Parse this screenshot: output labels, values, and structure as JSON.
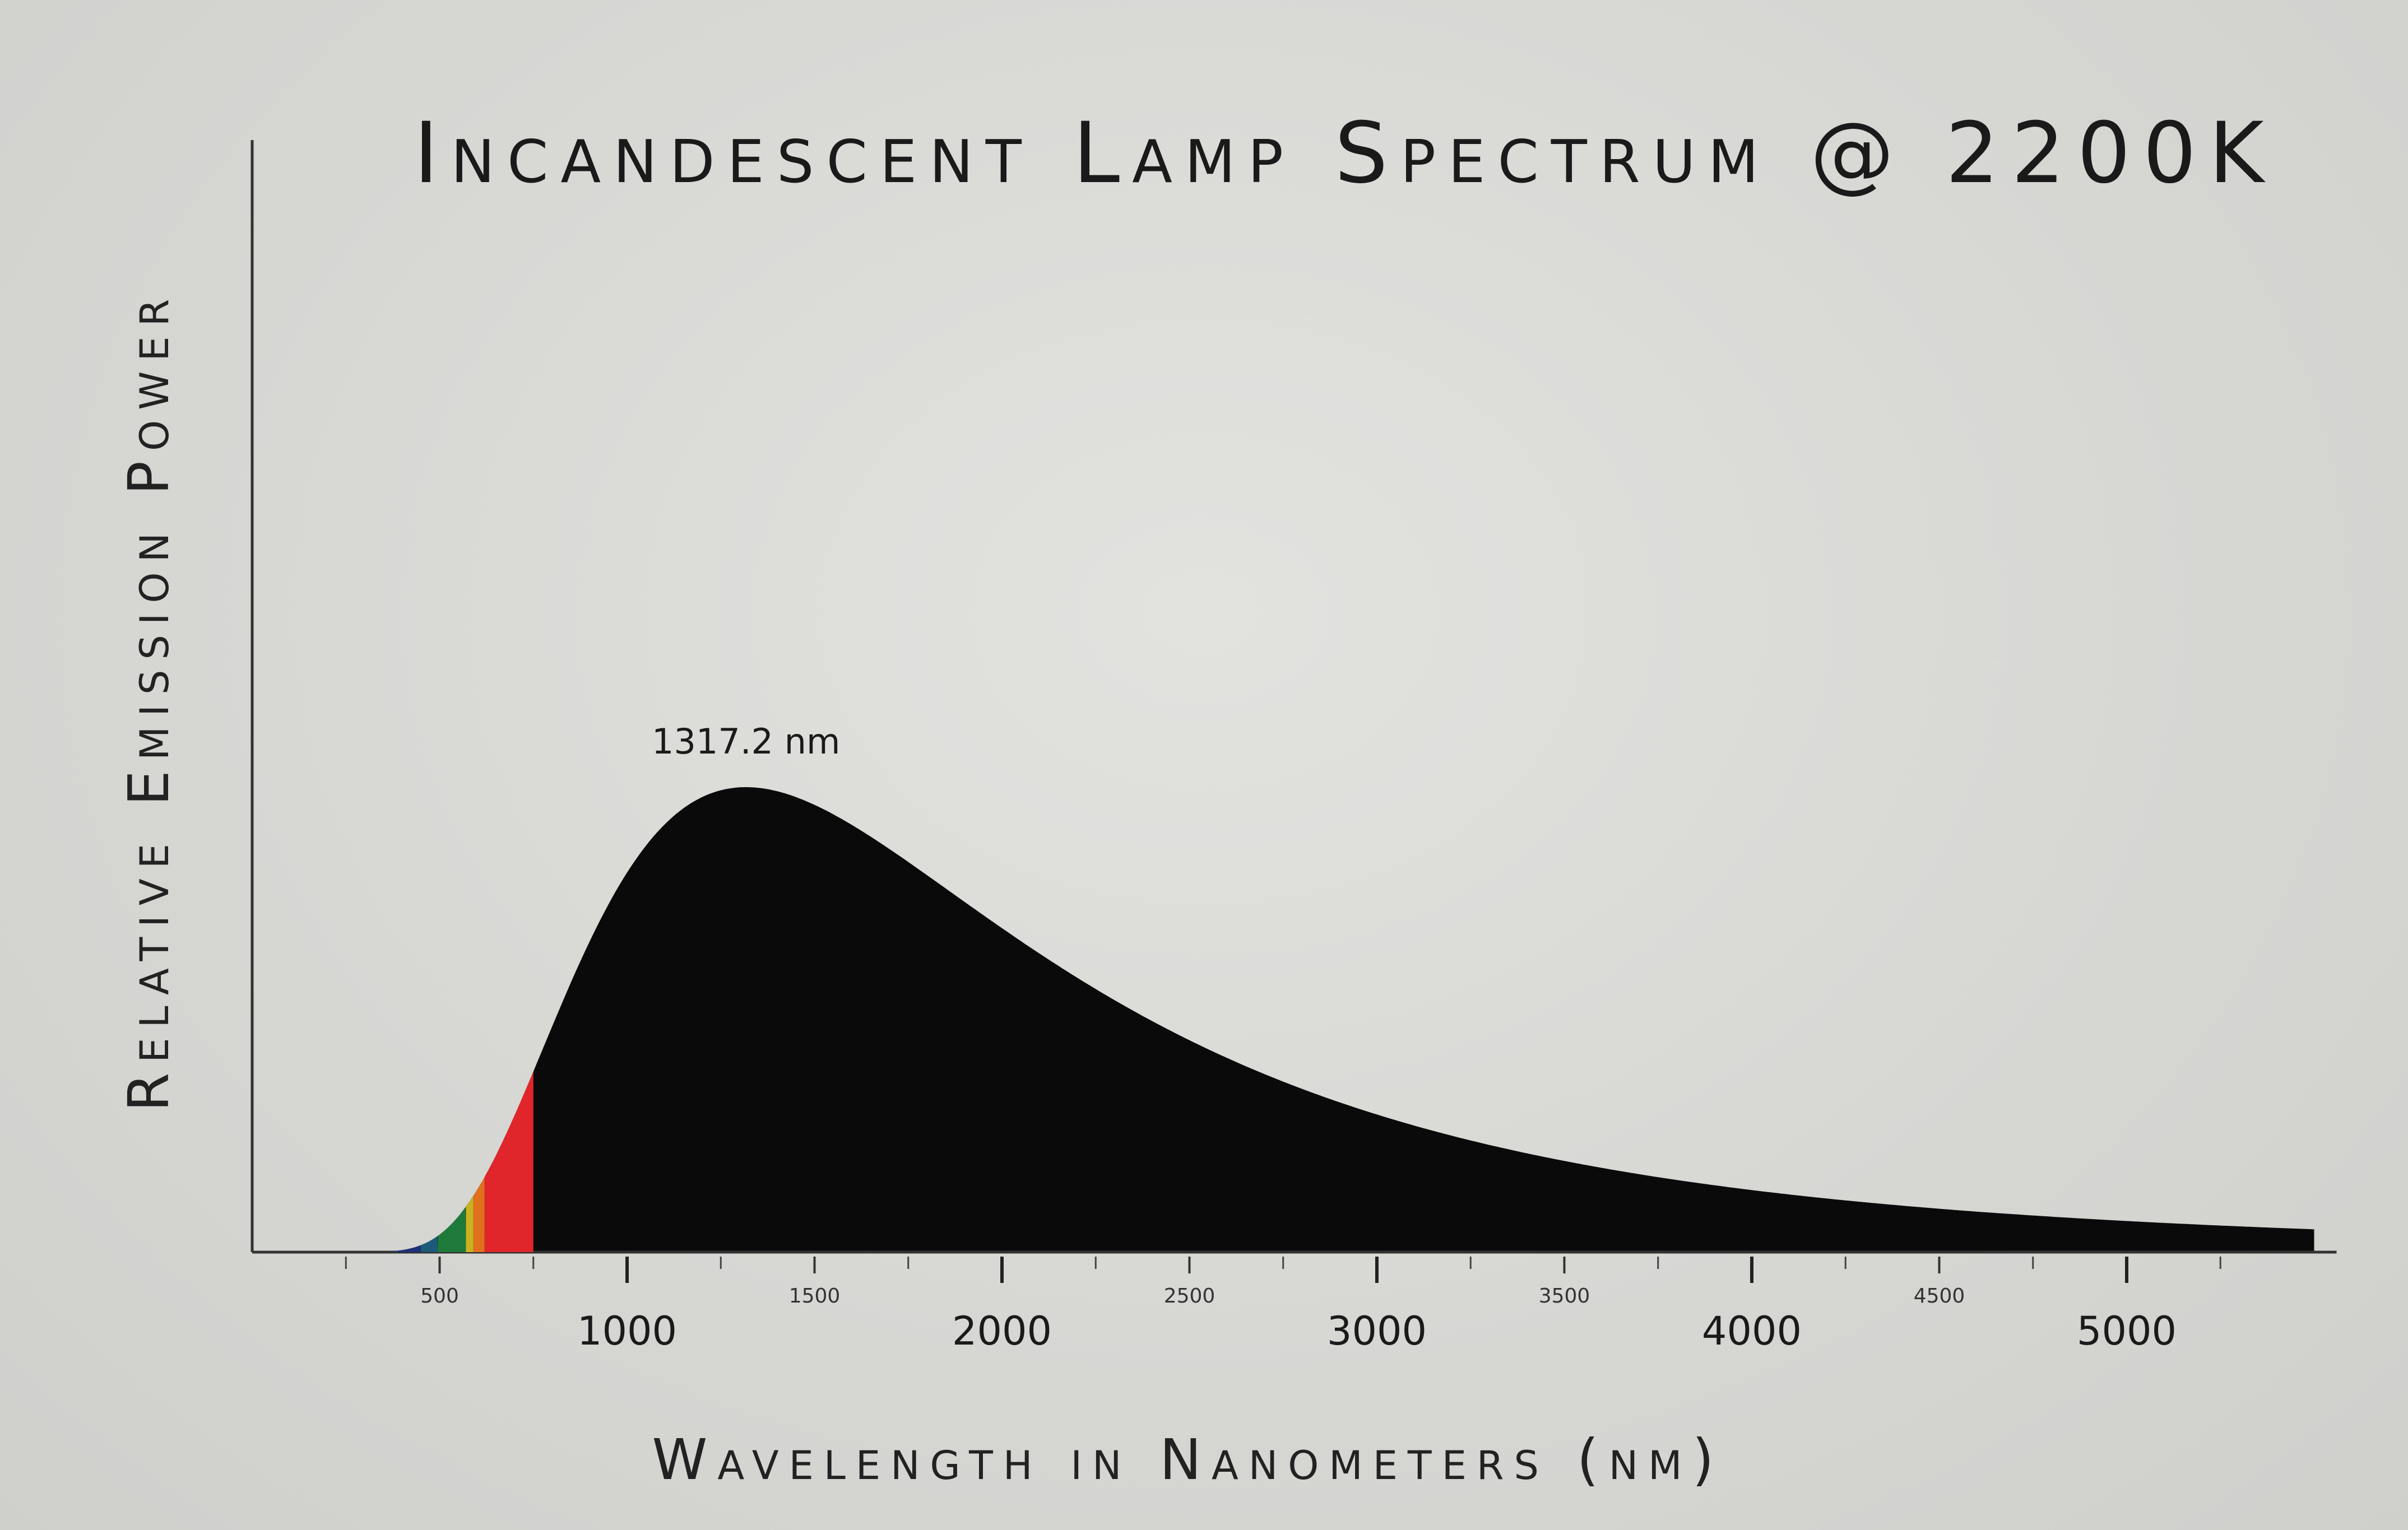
{
  "chart_data": {
    "type": "area",
    "title": "Incandescent Lamp Spectrum @ 2200K",
    "xlabel": "Wavelength in Nanometers (nm)",
    "ylabel": "Relative Emission Power",
    "temperature_k": 2200,
    "xlim": [
      0,
      5500
    ],
    "ylim": [
      0,
      1.55
    ],
    "peak_annotation": {
      "x": 1317.2,
      "label": "1317.2 nm"
    },
    "major_ticks": [
      {
        "value": 1000,
        "label": "1000"
      },
      {
        "value": 2000,
        "label": "2000"
      },
      {
        "value": 3000,
        "label": "3000"
      },
      {
        "value": 4000,
        "label": "4000"
      },
      {
        "value": 5000,
        "label": "5000"
      }
    ],
    "minor_ticks": [
      {
        "value": 500,
        "label": "500"
      },
      {
        "value": 1500,
        "label": "1500"
      },
      {
        "value": 2500,
        "label": "2500"
      },
      {
        "value": 3500,
        "label": "3500"
      },
      {
        "value": 4500,
        "label": "4500"
      }
    ],
    "visible_bands": [
      {
        "from": 380,
        "to": 450,
        "color": "#1f2f7a"
      },
      {
        "from": 450,
        "to": 495,
        "color": "#1d5a7a"
      },
      {
        "from": 495,
        "to": 570,
        "color": "#1e7a3a"
      },
      {
        "from": 570,
        "to": 590,
        "color": "#c9b21f"
      },
      {
        "from": 590,
        "to": 620,
        "color": "#e0701e"
      },
      {
        "from": 620,
        "to": 750,
        "color": "#e0262a"
      }
    ],
    "fill_color": "#0a0a0a",
    "grid": false,
    "legend": "none"
  }
}
